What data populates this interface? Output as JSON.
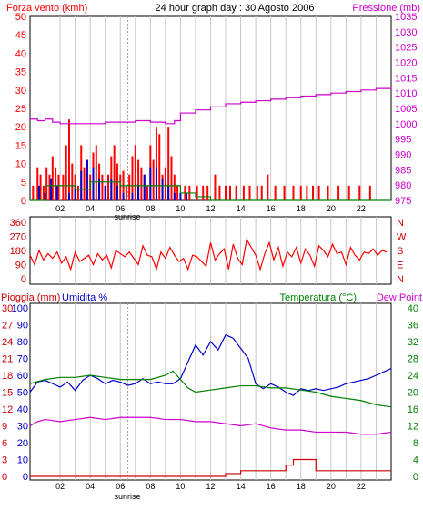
{
  "title": "24 hour graph day : 30 Agosto 2006",
  "sunrise_label": "sunrise",
  "colors": {
    "red": "#ff0000",
    "blue": "#0000cc",
    "green": "#008000",
    "magenta": "#cc00cc",
    "darkred": "#cc0000",
    "grid": "#c8c8c8",
    "frame": "#000000",
    "sunrise_line": "#a0a0a0"
  },
  "chart_data": [
    {
      "type": "bar",
      "title": "24 hour graph day : 30 Agosto 2006",
      "left_label": "Forza vento (kmh)",
      "right_label": "Pressione (mb)",
      "x_ticks": [
        "02",
        "04",
        "06",
        "08",
        "10",
        "12",
        "14",
        "16",
        "18",
        "20",
        "22"
      ],
      "xlim": [
        0,
        24
      ],
      "ylim_left": [
        0,
        50
      ],
      "ylim_right": [
        975,
        1035
      ],
      "left_ticks": [
        0,
        5,
        10,
        15,
        20,
        25,
        30,
        35,
        40,
        45,
        50
      ],
      "right_ticks": [
        975,
        980,
        985,
        990,
        995,
        1000,
        1005,
        1010,
        1015,
        1020,
        1025,
        1030,
        1035
      ],
      "sunrise_hour": 6.5,
      "series": [
        {
          "name": "Gust",
          "color": "#ff0000",
          "style": "bars",
          "x": [
            0.2,
            0.5,
            0.7,
            0.9,
            1.1,
            1.3,
            1.5,
            1.7,
            1.9,
            2.2,
            2.4,
            2.6,
            2.8,
            3.0,
            3.2,
            3.4,
            3.6,
            3.8,
            4.0,
            4.2,
            4.4,
            4.6,
            4.8,
            5.0,
            5.2,
            5.4,
            5.6,
            5.8,
            6.0,
            6.2,
            6.4,
            6.6,
            6.8,
            7.0,
            7.2,
            7.4,
            7.6,
            7.8,
            8.0,
            8.2,
            8.4,
            8.6,
            8.8,
            9.0,
            9.2,
            9.4,
            9.6,
            9.8,
            10.3,
            10.6,
            11.1,
            11.5,
            11.8,
            12.3,
            12.6,
            13.0,
            13.3,
            13.7,
            14.2,
            14.6,
            15.1,
            15.4,
            15.8,
            16.3,
            16.9,
            17.5,
            18.0,
            18.4,
            18.8,
            19.2,
            19.8,
            20.5,
            21.2,
            21.9,
            22.6
          ],
          "values": [
            4,
            9,
            7,
            4,
            9,
            7,
            12,
            9,
            7,
            7,
            15,
            22,
            10,
            7,
            4,
            15,
            9,
            11,
            7,
            13,
            15,
            10,
            7,
            4,
            7,
            12,
            15,
            10,
            7,
            8,
            4,
            7,
            12,
            15,
            11,
            9,
            7,
            4,
            15,
            11,
            20,
            18,
            7,
            9,
            20,
            12,
            7,
            4,
            4,
            4,
            4,
            4,
            4,
            7,
            4,
            4,
            4,
            4,
            4,
            4,
            4,
            4,
            7,
            4,
            4,
            4,
            4,
            4,
            4,
            4,
            4,
            4,
            4,
            4,
            4
          ]
        },
        {
          "name": "Wind",
          "color": "#0000cc",
          "style": "bars",
          "x": [
            0.6,
            1.0,
            1.4,
            1.8,
            2.6,
            3.0,
            3.4,
            3.8,
            4.2,
            4.6,
            5.0,
            5.4,
            5.8,
            6.2,
            6.8,
            7.2,
            7.6,
            8.0,
            8.4,
            8.8,
            9.2,
            9.6,
            10.0,
            10.4
          ],
          "values": [
            4,
            2,
            6,
            4,
            2,
            4,
            8,
            11,
            9,
            6,
            4,
            6,
            4,
            2,
            2,
            4,
            7,
            9,
            9,
            6,
            4,
            2,
            2,
            2
          ]
        },
        {
          "name": "Wind avg",
          "color": "#008000",
          "style": "line",
          "x": [
            0,
            1,
            2,
            3,
            4,
            5,
            6,
            7,
            8,
            9,
            10,
            11,
            12,
            13,
            14,
            15,
            16,
            17,
            18,
            19,
            20,
            21,
            22,
            24
          ],
          "values": [
            0,
            4,
            4,
            3,
            5,
            5,
            4,
            4,
            4,
            4,
            2,
            1,
            0,
            0,
            0,
            0,
            0,
            0,
            0,
            0,
            0,
            0,
            0,
            0
          ]
        },
        {
          "name": "Pressione",
          "color": "#cc00cc",
          "axis": "right",
          "style": "line",
          "x": [
            0,
            0.5,
            1.0,
            1.5,
            2.0,
            3.0,
            4.0,
            5.0,
            6.0,
            7.0,
            8.0,
            9.0,
            9.6,
            10.0,
            11.0,
            12.0,
            13.0,
            14.0,
            15.0,
            16.0,
            17.0,
            18.0,
            19.0,
            20.0,
            21.0,
            22.0,
            23.0,
            24.0
          ],
          "values": [
            1001.5,
            1001.0,
            1001.5,
            1000.5,
            1000.0,
            1000.0,
            1000.0,
            1000.5,
            1000.5,
            1001.0,
            1000.5,
            1000.0,
            1001.0,
            1003.5,
            1004.5,
            1005.5,
            1006.5,
            1007.0,
            1007.5,
            1008.0,
            1008.5,
            1009.0,
            1009.5,
            1010.0,
            1010.5,
            1011.0,
            1011.5,
            1012.0
          ]
        }
      ]
    },
    {
      "type": "line",
      "left_label": "",
      "right_label": "",
      "xlim": [
        0,
        24
      ],
      "ylim_left": [
        0,
        360
      ],
      "left_ticks": [
        0,
        90,
        180,
        270,
        360
      ],
      "right_tick_labels": [
        "N",
        "E",
        "S",
        "W",
        "N"
      ],
      "series": [
        {
          "name": "Direzione",
          "color": "#ff0000",
          "x": [
            0,
            0.3,
            0.6,
            0.9,
            1.2,
            1.5,
            1.8,
            2.1,
            2.4,
            2.7,
            3.0,
            3.3,
            3.6,
            3.9,
            4.2,
            4.5,
            4.8,
            5.1,
            5.4,
            5.7,
            6.0,
            6.3,
            6.6,
            6.9,
            7.2,
            7.5,
            7.8,
            8.1,
            8.4,
            8.7,
            9.0,
            9.3,
            9.6,
            9.9,
            10.2,
            10.5,
            10.8,
            11.1,
            11.4,
            11.7,
            12.0,
            12.3,
            12.6,
            12.9,
            13.2,
            13.5,
            13.8,
            14.1,
            14.4,
            14.7,
            15.0,
            15.3,
            15.6,
            15.9,
            16.2,
            16.5,
            16.8,
            17.1,
            17.4,
            17.7,
            18.0,
            18.3,
            18.6,
            18.9,
            19.2,
            19.5,
            19.8,
            20.1,
            20.4,
            20.7,
            21.0,
            21.3,
            21.6,
            21.9,
            22.2,
            22.5,
            22.8,
            23.1,
            23.4,
            23.7
          ],
          "values": [
            150,
            90,
            180,
            120,
            160,
            130,
            170,
            100,
            140,
            60,
            170,
            110,
            130,
            150,
            90,
            160,
            120,
            150,
            70,
            180,
            160,
            140,
            170,
            130,
            90,
            210,
            150,
            140,
            60,
            170,
            130,
            200,
            150,
            110,
            130,
            60,
            150,
            140,
            110,
            80,
            230,
            120,
            160,
            190,
            60,
            220,
            130,
            90,
            250,
            200,
            150,
            60,
            160,
            230,
            120,
            200,
            80,
            170,
            140,
            200,
            100,
            190,
            150,
            80,
            210,
            180,
            140,
            220,
            160,
            170,
            90,
            200,
            150,
            120,
            170,
            160,
            190,
            150,
            180,
            170
          ]
        }
      ]
    },
    {
      "type": "line",
      "left_label_1": "Pioggia (mm)",
      "left_label_2": "Umidita %",
      "right_label_1": "Temperatura (°C)",
      "right_label_2": "Dew Point",
      "x_ticks": [
        "02",
        "04",
        "06",
        "08",
        "10",
        "12",
        "14",
        "16",
        "18",
        "20",
        "22"
      ],
      "xlim": [
        0,
        24
      ],
      "sunrise_hour": 6.5,
      "rain_ticks": [
        0,
        3,
        6,
        9,
        12,
        15,
        18,
        21,
        24,
        27,
        30
      ],
      "humidity_ticks": [
        0,
        10,
        20,
        30,
        40,
        50,
        60,
        70,
        80,
        90,
        100
      ],
      "temp_ticks": [
        0,
        4,
        8,
        12,
        16,
        20,
        24,
        28,
        32,
        36,
        40
      ],
      "ylim_rain": [
        0,
        30
      ],
      "ylim_humidity": [
        0,
        100
      ],
      "ylim_temp": [
        0,
        40
      ],
      "series": [
        {
          "name": "Umidita",
          "color": "#0000cc",
          "axis": "humidity",
          "x": [
            0,
            0.5,
            1,
            1.5,
            2,
            2.5,
            3,
            3.5,
            4,
            4.5,
            5,
            5.5,
            6,
            6.5,
            7,
            7.5,
            8,
            8.5,
            9,
            9.5,
            10,
            10.5,
            11,
            11.5,
            12,
            12.5,
            13,
            13.5,
            14,
            14.5,
            15,
            15.5,
            16,
            16.5,
            17,
            17.5,
            18,
            18.5,
            19,
            19.5,
            20,
            20.5,
            21,
            21.5,
            22,
            22.5,
            23,
            23.5,
            24
          ],
          "values": [
            50,
            56,
            57,
            55,
            53,
            56,
            51,
            57,
            60,
            58,
            55,
            57,
            56,
            54,
            55,
            58,
            55,
            56,
            55,
            55,
            58,
            68,
            78,
            72,
            80,
            75,
            84,
            82,
            76,
            70,
            55,
            52,
            55,
            53,
            50,
            48,
            52,
            51,
            52,
            51,
            52,
            53,
            55,
            56,
            57,
            58,
            60,
            62,
            64
          ]
        },
        {
          "name": "Temperatura",
          "color": "#008000",
          "axis": "temp",
          "x": [
            0,
            1,
            2,
            3,
            4,
            5,
            6,
            7,
            8,
            9,
            9.5,
            10,
            10.5,
            11,
            12,
            13,
            14,
            15,
            16,
            17,
            18,
            19,
            20,
            21,
            22,
            23,
            24
          ],
          "values": [
            22,
            23,
            23.5,
            23.5,
            24,
            23.5,
            23,
            23,
            23,
            24,
            25,
            23,
            21,
            20,
            20.5,
            21,
            21.5,
            21.5,
            21,
            21,
            20.5,
            20,
            19,
            18.5,
            18,
            17,
            16.5
          ]
        },
        {
          "name": "Dew Point",
          "color": "#cc00cc",
          "axis": "temp",
          "x": [
            0,
            0.5,
            1,
            2,
            3,
            4,
            5,
            6,
            7,
            8,
            9,
            10,
            11,
            12,
            13,
            14,
            15,
            16,
            17,
            18,
            19,
            20,
            21,
            22,
            23,
            24
          ],
          "values": [
            12,
            13,
            13.5,
            13,
            13.5,
            14,
            13.5,
            14,
            14,
            14,
            13.5,
            13.5,
            13,
            13,
            12.5,
            12,
            12.5,
            11.5,
            11,
            11,
            10.5,
            10.5,
            10.5,
            10,
            10,
            10.5
          ]
        },
        {
          "name": "Pioggia",
          "color": "#cc0000",
          "axis": "rain",
          "style": "step",
          "x": [
            0,
            10,
            11,
            12,
            13,
            14,
            15,
            16,
            17,
            17.5,
            18,
            19,
            20,
            21,
            22,
            23,
            24
          ],
          "values": [
            0,
            0,
            0,
            0,
            0.5,
            1,
            1,
            1,
            2,
            3,
            3,
            1,
            1,
            1,
            1,
            1,
            1
          ]
        }
      ]
    }
  ]
}
